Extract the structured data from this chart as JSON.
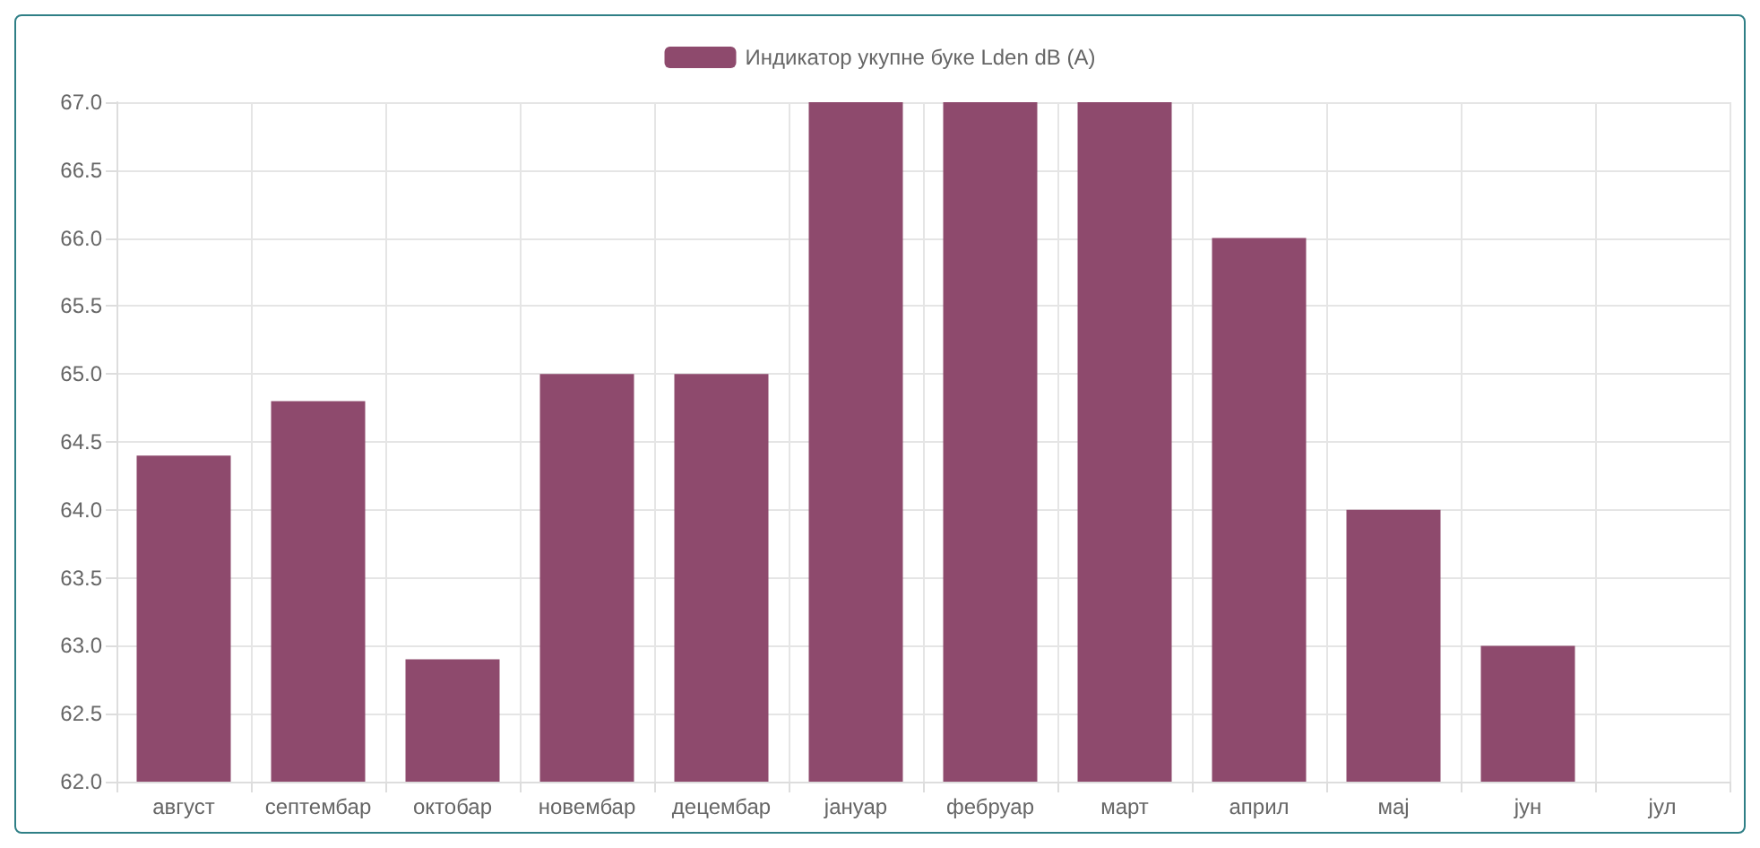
{
  "chart_data": {
    "type": "bar",
    "categories": [
      "август",
      "септембар",
      "октобар",
      "новембар",
      "децембар",
      "јануар",
      "фебруар",
      "март",
      "април",
      "мај",
      "јун",
      "јул"
    ],
    "series": [
      {
        "name": "Индикатор укупне буке Lden dB (A)",
        "color": "#8e4a6d",
        "values": [
          64.4,
          64.8,
          62.9,
          65.0,
          65.0,
          67.0,
          67.0,
          67.0,
          66.0,
          64.0,
          63.0,
          null
        ]
      }
    ],
    "ylim": [
      62,
      67
    ],
    "yticks": [
      {
        "value": 62,
        "label": "62.0"
      },
      {
        "value": 62.5,
        "label": "62.5"
      },
      {
        "value": 63,
        "label": "63.0"
      },
      {
        "value": 63.5,
        "label": "63.5"
      },
      {
        "value": 64,
        "label": "64.0"
      },
      {
        "value": 64.5,
        "label": "64.5"
      },
      {
        "value": 65,
        "label": "65.0"
      },
      {
        "value": 65.5,
        "label": "65.5"
      },
      {
        "value": 66,
        "label": "66.0"
      },
      {
        "value": 66.5,
        "label": "66.5"
      },
      {
        "value": 67,
        "label": "67.0"
      }
    ],
    "grid": true,
    "legend": "top"
  }
}
